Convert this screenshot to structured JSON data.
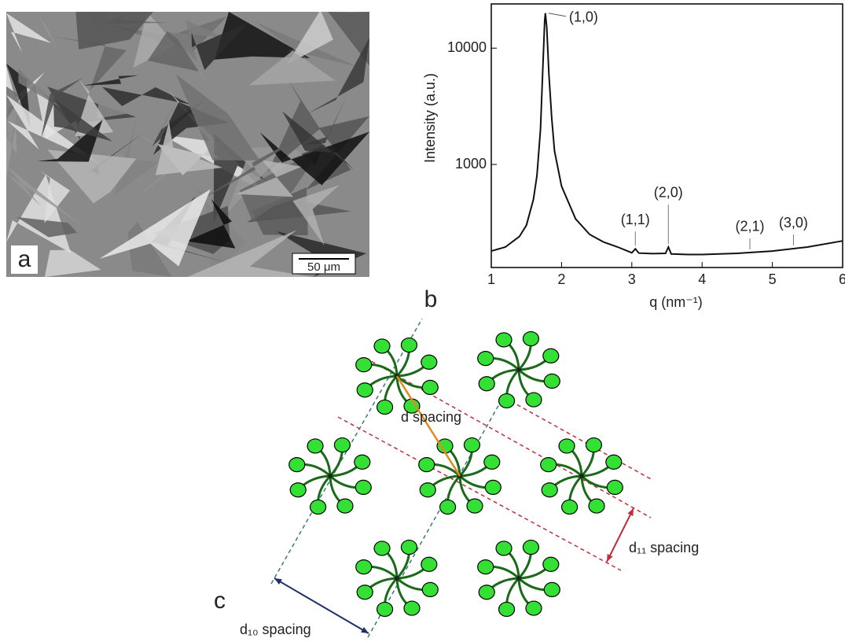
{
  "panel_a": {
    "label": "a",
    "scale_bar": "50 μm"
  },
  "chart_data": {
    "type": "line",
    "panel_label": "b",
    "x_label": "q (nm⁻¹)",
    "y_label": "Intensity (a.u.)",
    "log_y": true,
    "xlim": [
      1,
      6
    ],
    "xticks": [
      1,
      2,
      3,
      4,
      5,
      6
    ],
    "ylim": [
      130,
      24000
    ],
    "yticks": [
      1000,
      10000
    ],
    "x": [
      1.0,
      1.2,
      1.4,
      1.5,
      1.6,
      1.65,
      1.7,
      1.73,
      1.76,
      1.77,
      1.79,
      1.82,
      1.86,
      1.9,
      2.0,
      2.2,
      2.4,
      2.6,
      2.8,
      3.0,
      3.05,
      3.1,
      3.3,
      3.48,
      3.52,
      3.56,
      3.8,
      4.0,
      4.5,
      5.0,
      5.5,
      6.0
    ],
    "series": [
      {
        "color": "#111111",
        "values": [
          180,
          195,
          240,
          300,
          500,
          800,
          2000,
          6000,
          17000,
          20000,
          15000,
          6000,
          2500,
          1300,
          650,
          340,
          250,
          215,
          195,
          174,
          188,
          173,
          171,
          172,
          195,
          170,
          168,
          168,
          172,
          180,
          195,
          220
        ]
      }
    ],
    "annotations": [
      {
        "text": "(1,0)",
        "x": 1.77
      },
      {
        "text": "(1,1)",
        "x": 3.05
      },
      {
        "text": "(2,0)",
        "x": 3.52
      },
      {
        "text": "(2,1)",
        "x": 4.68
      },
      {
        "text": "(3,0)",
        "x": 5.3
      }
    ]
  },
  "panel_c": {
    "label": "c",
    "d_spacing": "d spacing",
    "d10_spacing": "d₁₀ spacing",
    "d11_spacing": "d₁₁ spacing"
  }
}
